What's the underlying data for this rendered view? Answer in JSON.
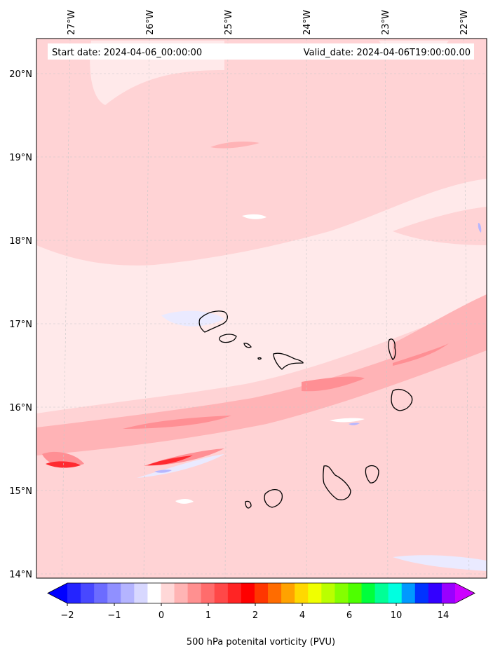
{
  "map": {
    "start_label": "Start date: 2024-04-06_00:00:00",
    "valid_label": "Valid_date: 2024-04-06T19:00:00.00",
    "lon_ticks": [
      "27°W",
      "26°W",
      "25°W",
      "24°W",
      "23°W",
      "22°W"
    ],
    "lat_ticks": [
      "20°N",
      "19°N",
      "18°N",
      "17°N",
      "16°N",
      "15°N",
      "14°N"
    ],
    "colorbar": {
      "label": "500 hPa potenital vorticity (PVU)",
      "ticks": [
        "−2",
        "−1",
        "0",
        "1",
        "2",
        "4",
        "6",
        "10",
        "14"
      ],
      "colors": [
        "#0000ff",
        "#2424ff",
        "#4848ff",
        "#6c6cff",
        "#9090ff",
        "#b4b4ff",
        "#d8d8ff",
        "#ffffff",
        "#ffd8d8",
        "#ffb4b4",
        "#ff9090",
        "#ff6c6c",
        "#ff4848",
        "#ff2424",
        "#ff0000",
        "#ff3600",
        "#ff6c00",
        "#ffa200",
        "#ffd800",
        "#f0ff00",
        "#baff00",
        "#84ff00",
        "#4eff00",
        "#00ff3c",
        "#00ff96",
        "#00ffe0",
        "#0099ff",
        "#0033ff",
        "#3300ff",
        "#9900ff",
        "#cc00ff"
      ]
    }
  }
}
